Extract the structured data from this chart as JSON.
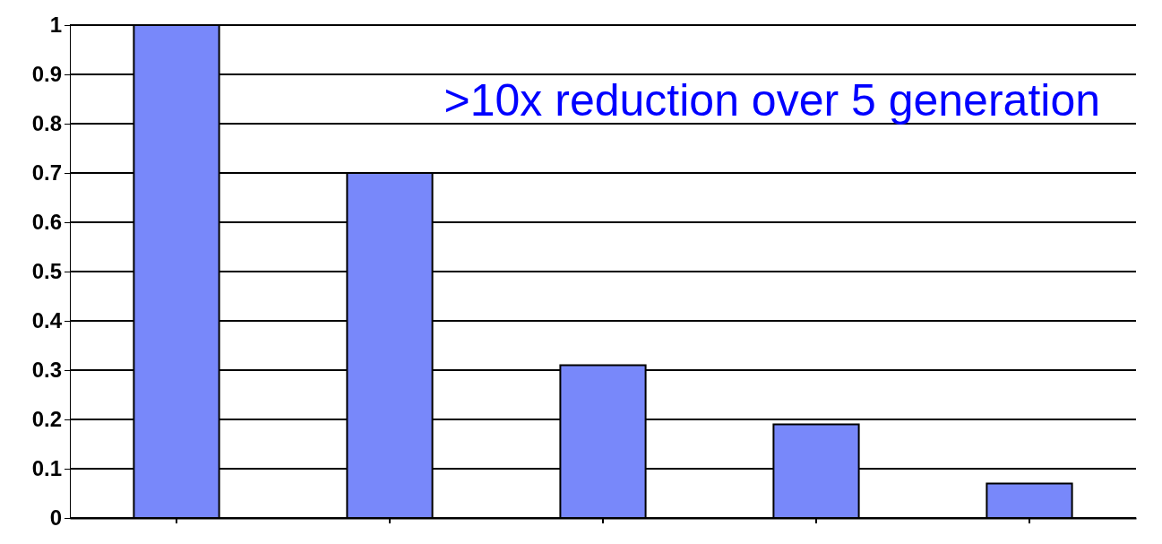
{
  "chart_data": {
    "type": "bar",
    "categories": [
      null,
      null,
      null,
      null,
      null
    ],
    "values": [
      1.0,
      0.7,
      0.31,
      0.19,
      0.07
    ],
    "color": "#7888fa",
    "ylim": [
      0,
      1
    ],
    "yticks": [
      0,
      0.1,
      0.2,
      0.3,
      0.4,
      0.5,
      0.6,
      0.7,
      0.8,
      0.9,
      1
    ],
    "grid": "y",
    "annotations": [
      ">10x reduction over 5 generation"
    ]
  }
}
